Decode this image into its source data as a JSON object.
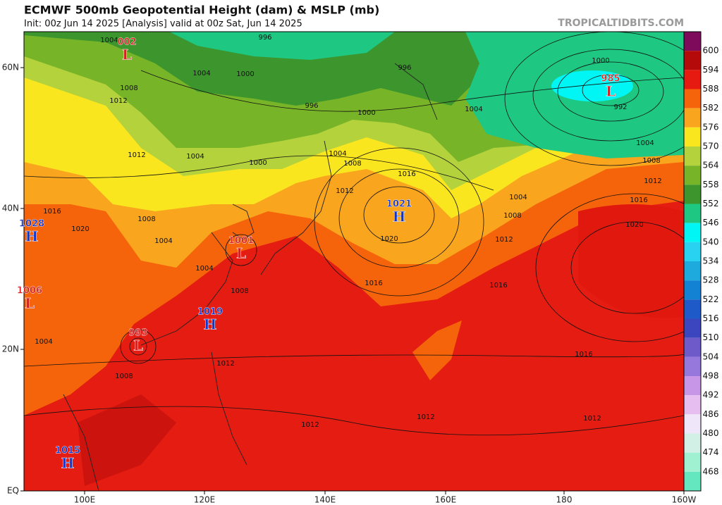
{
  "header": {
    "title": "ECMWF 500mb Geopotential Height (dam) & MSLP (mb)",
    "subtitle": "Init: 00z Jun 14 2025   [Analysis]   valid at 00z Sat, Jun 14 2025",
    "watermark": "TROPICALTIDBITS.COM"
  },
  "map": {
    "lat_labels": [
      "60N",
      "40N",
      "20N",
      "EQ"
    ],
    "lon_labels": [
      "100E",
      "120E",
      "140E",
      "160E",
      "180",
      "160W"
    ],
    "centers": [
      {
        "type": "L",
        "value": "002"
      },
      {
        "type": "L",
        "value": "1001"
      },
      {
        "type": "H",
        "value": "1021"
      },
      {
        "type": "L",
        "value": "985"
      },
      {
        "type": "H",
        "value": "1028"
      },
      {
        "type": "L",
        "value": "1006"
      },
      {
        "type": "H",
        "value": "1019"
      },
      {
        "type": "L",
        "value": "993"
      },
      {
        "type": "H",
        "value": "1015"
      }
    ],
    "isobar_labels": [
      1004,
      996,
      996,
      1000,
      1004,
      1008,
      1012,
      996,
      1000,
      1004,
      1000,
      992,
      1004,
      1008,
      1012,
      1016,
      1020,
      1004,
      1008,
      1012,
      1016,
      1016,
      1020,
      1016,
      1012,
      1008,
      1004,
      1000,
      1004,
      1012,
      1008,
      1004,
      1016,
      1020,
      1004,
      1008,
      1012,
      1016,
      1012,
      1012,
      1012,
      1008,
      1004
    ]
  },
  "colorbar": {
    "entries": [
      {
        "value": 600,
        "color": "#7d0a5a"
      },
      {
        "value": 594,
        "color": "#b40a0a"
      },
      {
        "value": 588,
        "color": "#e61a10"
      },
      {
        "value": 582,
        "color": "#f5640a"
      },
      {
        "value": 576,
        "color": "#faa51e"
      },
      {
        "value": 570,
        "color": "#fae61e"
      },
      {
        "value": 564,
        "color": "#b4d23c"
      },
      {
        "value": 558,
        "color": "#78b428"
      },
      {
        "value": 552,
        "color": "#3c962d"
      },
      {
        "value": 546,
        "color": "#1ec882"
      },
      {
        "value": 540,
        "color": "#00f5f5"
      },
      {
        "value": 534,
        "color": "#28d2f0"
      },
      {
        "value": 528,
        "color": "#1eaadc"
      },
      {
        "value": 522,
        "color": "#1482d2"
      },
      {
        "value": 516,
        "color": "#1e5ac8"
      },
      {
        "value": 510,
        "color": "#3c46be"
      },
      {
        "value": 504,
        "color": "#6e5ac8"
      },
      {
        "value": 498,
        "color": "#9678dc"
      },
      {
        "value": 492,
        "color": "#c896e6"
      },
      {
        "value": 486,
        "color": "#e6bef0"
      },
      {
        "value": 480,
        "color": "#f0e6fa"
      },
      {
        "value": 474,
        "color": "#d2f0e6"
      },
      {
        "value": 468,
        "color": "#a0f0d2"
      }
    ],
    "below_color": "#64e6be"
  }
}
